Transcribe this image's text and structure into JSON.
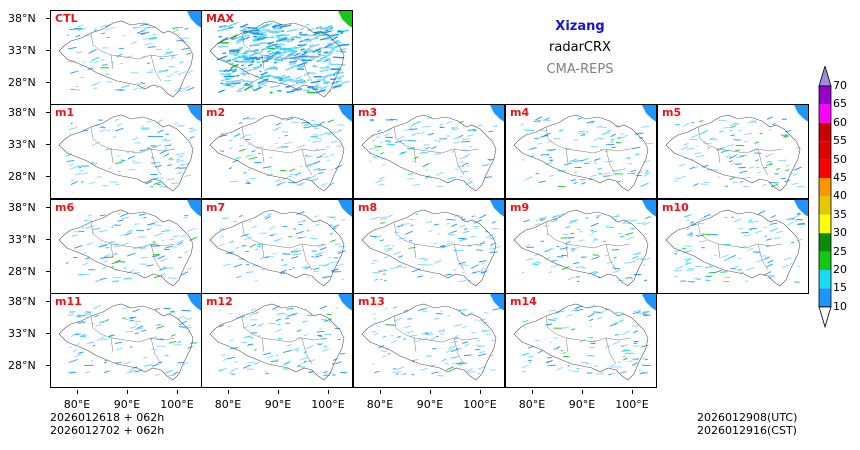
{
  "header": {
    "region": "Xizang",
    "product": "radarCRX",
    "system": "CMA-REPS",
    "region_color": "#1414d2",
    "system_color": "#808080"
  },
  "panels": [
    {
      "label": "CTL"
    },
    {
      "label": "MAX"
    },
    {
      "label": "m1"
    },
    {
      "label": "m2"
    },
    {
      "label": "m3"
    },
    {
      "label": "m4"
    },
    {
      "label": "m5"
    },
    {
      "label": "m6"
    },
    {
      "label": "m7"
    },
    {
      "label": "m8"
    },
    {
      "label": "m9"
    },
    {
      "label": "m10"
    },
    {
      "label": "m11"
    },
    {
      "label": "m12"
    },
    {
      "label": "m13"
    },
    {
      "label": "m14"
    }
  ],
  "axes": {
    "y_ticks": [
      "38°N",
      "33°N",
      "28°N"
    ],
    "x_ticks": [
      "80°E",
      "90°E",
      "100°E"
    ]
  },
  "colorbar": {
    "levels": [
      "10",
      "15",
      "20",
      "25",
      "30",
      "35",
      "40",
      "45",
      "50",
      "55",
      "60",
      "65",
      "70"
    ],
    "colors": [
      "#1e96ff",
      "#19dcf0",
      "#14c814",
      "#0a8c0a",
      "#ffff00",
      "#e6c800",
      "#ff9600",
      "#ff0000",
      "#dc0000",
      "#c80000",
      "#ff00ff",
      "#9600c8",
      "#a08cdc"
    ]
  },
  "footer": {
    "init_line1": "2026012618  +  062h",
    "init_line2": "2026012702  +  062h",
    "valid_utc": "2026012908(UTC)",
    "valid_cst": "2026012916(CST)"
  }
}
